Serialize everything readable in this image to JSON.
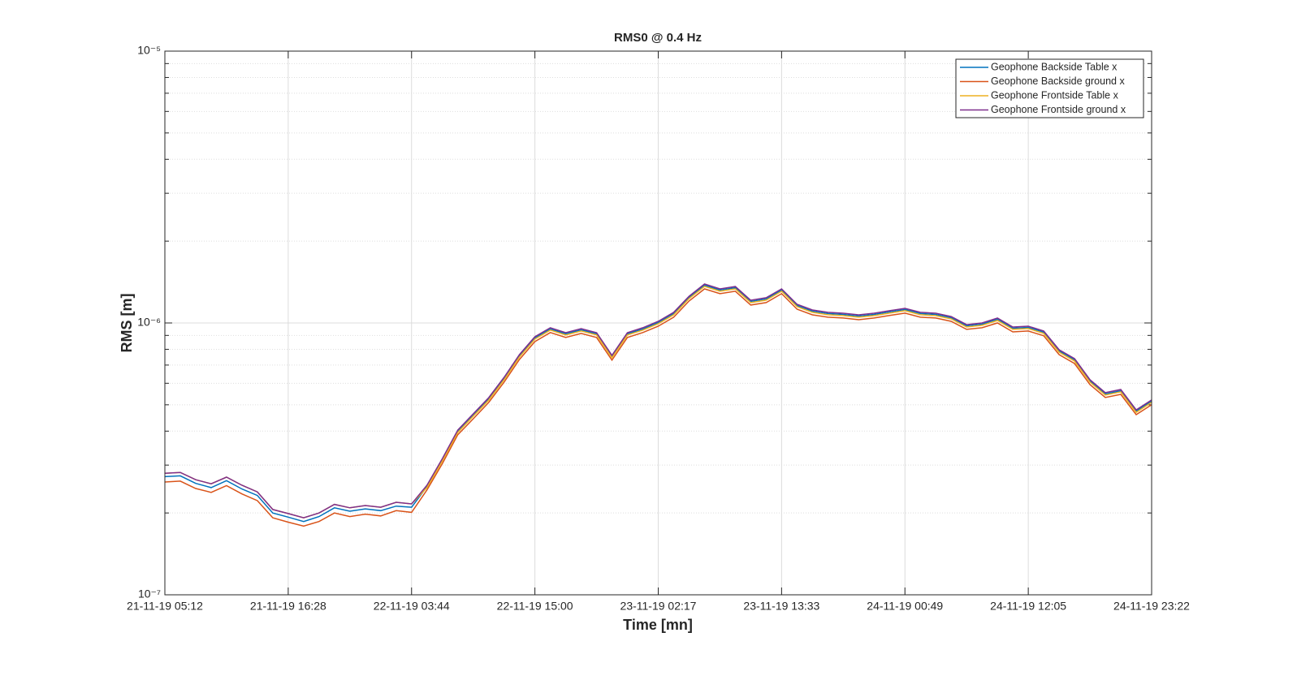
{
  "chart_data": {
    "type": "line",
    "title": "RMS0 @ 0.4 Hz",
    "xlabel": "Time [mn]",
    "ylabel": "RMS [m]",
    "log_y": true,
    "grid": true,
    "minor_grid": true,
    "legend": "upper right",
    "categories": [
      "21-11-19 05:12",
      null,
      null,
      null,
      null,
      null,
      null,
      null,
      "21-11-19 16:28",
      null,
      null,
      null,
      null,
      null,
      null,
      null,
      "22-11-19 03:44",
      null,
      null,
      null,
      null,
      null,
      null,
      null,
      "22-11-19 15:00",
      null,
      null,
      null,
      null,
      null,
      null,
      null,
      "23-11-19 02:17",
      null,
      null,
      null,
      null,
      null,
      null,
      null,
      "23-11-19 13:33",
      null,
      null,
      null,
      null,
      null,
      null,
      null,
      "24-11-19 00:49",
      null,
      null,
      null,
      null,
      null,
      null,
      null,
      "24-11-19 12:05",
      null,
      null,
      null,
      null,
      null,
      null,
      null,
      "24-11-19 23:22"
    ],
    "ylim": [
      1e-07,
      1e-05
    ],
    "yticks": [
      {
        "value": 1e-07,
        "label": "10⁻⁷"
      },
      {
        "value": 1e-06,
        "label": "10⁻⁶"
      },
      {
        "value": 1e-05,
        "label": "10⁻⁵"
      }
    ],
    "yminorticks": [
      2e-07,
      3e-07,
      4e-07,
      5e-07,
      6e-07,
      7e-07,
      8e-07,
      9e-07,
      2e-06,
      3e-06,
      4e-06,
      5e-06,
      6e-06,
      7e-06,
      8e-06,
      9e-06
    ],
    "series": [
      {
        "name": "Geophone Backside Table x",
        "color": "#0072BD",
        "values": [
          2.72e-07,
          2.74e-07,
          2.57e-07,
          2.48e-07,
          2.63e-07,
          2.45e-07,
          2.32e-07,
          2e-07,
          1.93e-07,
          1.86e-07,
          1.94e-07,
          2.09e-07,
          2.03e-07,
          2.07e-07,
          2.04e-07,
          2.12e-07,
          2.1e-07,
          2.5e-07,
          3.14e-07,
          4e-07,
          4.58e-07,
          5.26e-07,
          6.25e-07,
          7.57e-07,
          8.81e-07,
          9.5e-07,
          9.12e-07,
          9.43e-07,
          9.12e-07,
          7.52e-07,
          9.12e-07,
          9.5e-07,
          1.004e-06,
          1.083e-06,
          1.242e-06,
          1.377e-06,
          1.322e-06,
          1.348e-06,
          1.2e-06,
          1.226e-06,
          1.322e-06,
          1.159e-06,
          1.105e-06,
          1.083e-06,
          1.075e-06,
          1.06e-06,
          1.075e-06,
          1.098e-06,
          1.121e-06,
          1.083e-06,
          1.075e-06,
          1.045e-06,
          9.76e-07,
          9.9e-07,
          1.032e-06,
          9.56e-07,
          9.63e-07,
          9.25e-07,
          7.89e-07,
          7.32e-07,
          6.12e-07,
          5.48e-07,
          5.63e-07,
          4.74e-07,
          5.16e-07
        ]
      },
      {
        "name": "Geophone Backside ground x",
        "color": "#D95319",
        "values": [
          2.6e-07,
          2.62e-07,
          2.46e-07,
          2.38e-07,
          2.52e-07,
          2.35e-07,
          2.22e-07,
          1.92e-07,
          1.85e-07,
          1.79e-07,
          1.86e-07,
          2e-07,
          1.94e-07,
          1.98e-07,
          1.95e-07,
          2.04e-07,
          2.01e-07,
          2.43e-07,
          3.04e-07,
          3.88e-07,
          4.44e-07,
          5.1e-07,
          6.06e-07,
          7.34e-07,
          8.54e-07,
          9.22e-07,
          8.84e-07,
          9.15e-07,
          8.84e-07,
          7.3e-07,
          8.84e-07,
          9.22e-07,
          9.73e-07,
          1.05e-06,
          1.205e-06,
          1.335e-06,
          1.282e-06,
          1.308e-06,
          1.164e-06,
          1.188e-06,
          1.282e-06,
          1.124e-06,
          1.071e-06,
          1.05e-06,
          1.043e-06,
          1.028e-06,
          1.043e-06,
          1.065e-06,
          1.087e-06,
          1.05e-06,
          1.043e-06,
          1.014e-06,
          9.47e-07,
          9.6e-07,
          1e-06,
          9.27e-07,
          9.34e-07,
          8.97e-07,
          7.65e-07,
          7.09e-07,
          5.93e-07,
          5.32e-07,
          5.46e-07,
          4.6e-07,
          5e-07
        ]
      },
      {
        "name": "Geophone Frontside Table x",
        "color": "#EDB120",
        "values": [
          2.8e-07,
          2.82e-07,
          2.65e-07,
          2.56e-07,
          2.71e-07,
          2.53e-07,
          2.39e-07,
          2.06e-07,
          1.99e-07,
          1.92e-07,
          2e-07,
          2.15e-07,
          2.09e-07,
          2.13e-07,
          2.1e-07,
          2.19e-07,
          2.16e-07,
          2.48e-07,
          3.11e-07,
          3.96e-07,
          4.54e-07,
          5.2e-07,
          6.18e-07,
          7.5e-07,
          8.72e-07,
          9.41e-07,
          9.03e-07,
          9.34e-07,
          9.03e-07,
          7.45e-07,
          9.03e-07,
          9.41e-07,
          9.94e-07,
          1.072e-06,
          1.23e-06,
          1.363e-06,
          1.308e-06,
          1.335e-06,
          1.188e-06,
          1.213e-06,
          1.308e-06,
          1.148e-06,
          1.094e-06,
          1.072e-06,
          1.064e-06,
          1.05e-06,
          1.064e-06,
          1.087e-06,
          1.109e-06,
          1.072e-06,
          1.064e-06,
          1.035e-06,
          9.66e-07,
          9.8e-07,
          1.021e-06,
          9.47e-07,
          9.54e-07,
          9.15e-07,
          7.81e-07,
          7.24e-07,
          6.06e-07,
          5.43e-07,
          5.58e-07,
          4.69e-07,
          5.11e-07
        ]
      },
      {
        "name": "Geophone Frontside ground x",
        "color": "#7E2F8E",
        "values": [
          2.8e-07,
          2.82e-07,
          2.65e-07,
          2.56e-07,
          2.71e-07,
          2.53e-07,
          2.39e-07,
          2.06e-07,
          1.99e-07,
          1.92e-07,
          2e-07,
          2.15e-07,
          2.09e-07,
          2.13e-07,
          2.1e-07,
          2.19e-07,
          2.16e-07,
          2.53e-07,
          3.17e-07,
          4.04e-07,
          4.63e-07,
          5.31e-07,
          6.31e-07,
          7.65e-07,
          8.9e-07,
          9.6e-07,
          9.21e-07,
          9.53e-07,
          9.21e-07,
          7.6e-07,
          9.21e-07,
          9.6e-07,
          1.014e-06,
          1.094e-06,
          1.255e-06,
          1.391e-06,
          1.335e-06,
          1.362e-06,
          1.212e-06,
          1.238e-06,
          1.335e-06,
          1.171e-06,
          1.116e-06,
          1.094e-06,
          1.086e-06,
          1.071e-06,
          1.086e-06,
          1.109e-06,
          1.132e-06,
          1.094e-06,
          1.086e-06,
          1.056e-06,
          9.86e-07,
          1e-06,
          1.042e-06,
          9.66e-07,
          9.73e-07,
          9.34e-07,
          7.97e-07,
          7.39e-07,
          6.18e-07,
          5.54e-07,
          5.69e-07,
          4.79e-07,
          5.21e-07
        ]
      }
    ]
  }
}
